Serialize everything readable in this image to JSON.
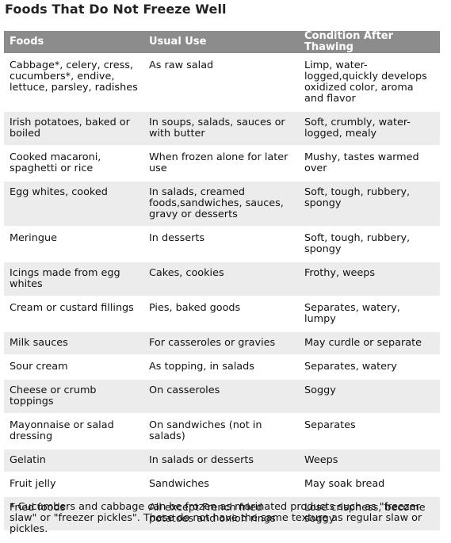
{
  "title": "Foods That Do Not Freeze Well",
  "table": {
    "headers": [
      "Foods",
      "Usual Use",
      "Condition After Thawing"
    ],
    "rows": [
      [
        "Cabbage*, celery, cress, cucumbers*, endive, lettuce, parsley, radishes",
        "As raw salad",
        "Limp, water-logged,quickly develops oxidized color, aroma and flavor"
      ],
      [
        "Irish potatoes, baked or boiled",
        "In soups, salads, sauces or with butter",
        "Soft, crumbly, water-logged, mealy"
      ],
      [
        "Cooked macaroni, spaghetti or rice",
        "When frozen alone for later use",
        "Mushy, tastes warmed over"
      ],
      [
        "Egg whites, cooked",
        "In salads, creamed foods,sandwiches, sauces, gravy or desserts",
        "Soft, tough, rubbery, spongy"
      ],
      [
        "Meringue",
        "In desserts",
        "Soft, tough, rubbery, spongy"
      ],
      [
        "Icings made from egg whites",
        "Cakes, cookies",
        "Frothy, weeps"
      ],
      [
        "Cream or custard fillings",
        "Pies, baked goods",
        "Separates, watery, lumpy"
      ],
      [
        "Milk sauces",
        "For casseroles or gravies",
        "May curdle or separate"
      ],
      [
        "Sour cream",
        "As topping, in salads",
        "Separates, watery"
      ],
      [
        "Cheese or crumb toppings",
        "On casseroles",
        "Soggy"
      ],
      [
        "Mayonnaise or salad dressing",
        "On sandwiches (not in salads)",
        "Separates"
      ],
      [
        "Gelatin",
        "In salads or desserts",
        "Weeps"
      ],
      [
        "Fruit jelly",
        "Sandwiches",
        "May soak bread"
      ],
      [
        "Fried foods",
        "All except French fried potatoes and onion rings",
        "Lose crispness, become soggy"
      ]
    ]
  },
  "footnote": "* Cucumbers and cabbage can be frozen as marinated products such as \"freezer slaw\" or \"freezer pickles\". These do not have the same texture as regular slaw or pickles.",
  "colors": {
    "header_bg": "#8c8c8c",
    "stripe_bg": "#ececec"
  }
}
